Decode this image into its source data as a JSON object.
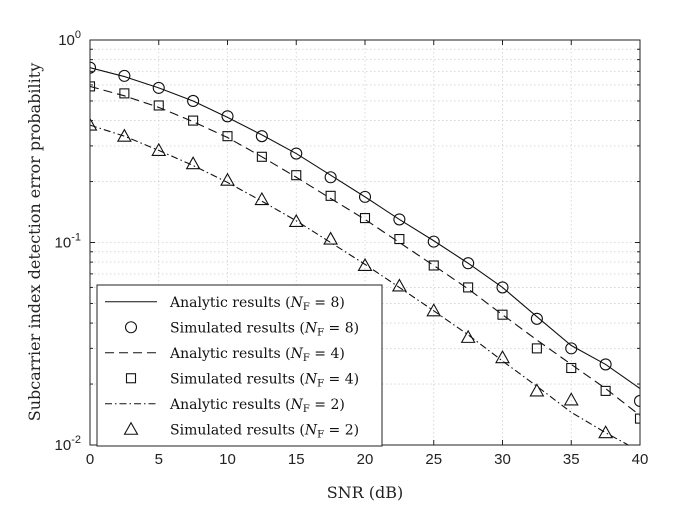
{
  "chart_data": {
    "type": "line",
    "title": "",
    "xlabel": "SNR (dB)",
    "ylabel": "Subcarrier index detection error probability",
    "xlim": [
      0,
      40
    ],
    "ylim": [
      0.01,
      1
    ],
    "yscale": "log",
    "grid": true,
    "legend_position": "bottom-left",
    "x_ticks": [
      "0",
      "5",
      "10",
      "15",
      "20",
      "25",
      "30",
      "35",
      "40"
    ],
    "y_ticks": [
      {
        "base": "10",
        "exp": "-2",
        "value": 0.01
      },
      {
        "base": "10",
        "exp": "-1",
        "value": 0.1
      },
      {
        "base": "10",
        "exp": "0",
        "value": 1
      }
    ],
    "series": [
      {
        "name": "Analytic results",
        "nf": "8",
        "style": "solid",
        "x": [
          0,
          2.5,
          5,
          7.5,
          10,
          12.5,
          15,
          17.5,
          20,
          22.5,
          25,
          27.5,
          30,
          32.5,
          35,
          37.5,
          40
        ],
        "values": [
          0.73,
          0.66,
          0.58,
          0.5,
          0.415,
          0.34,
          0.275,
          0.215,
          0.168,
          0.13,
          0.102,
          0.079,
          0.06,
          0.043,
          0.031,
          0.025,
          0.019
        ]
      },
      {
        "name": "Simulated results",
        "nf": "8",
        "marker": "circle",
        "x": [
          0,
          2.5,
          5,
          7.5,
          10,
          12.5,
          15,
          17.5,
          20,
          22.5,
          25,
          27.5,
          30,
          32.5,
          35,
          37.5,
          40
        ],
        "values": [
          0.73,
          0.665,
          0.58,
          0.5,
          0.42,
          0.335,
          0.275,
          0.21,
          0.168,
          0.13,
          0.101,
          0.079,
          0.06,
          0.042,
          0.03,
          0.025,
          0.0165
        ]
      },
      {
        "name": "Analytic results",
        "nf": "4",
        "style": "dashed",
        "x": [
          0,
          2.5,
          5,
          7.5,
          10,
          12.5,
          15,
          17.5,
          20,
          22.5,
          25,
          27.5,
          30,
          32.5,
          35,
          37.5,
          40
        ],
        "values": [
          0.59,
          0.53,
          0.465,
          0.395,
          0.33,
          0.265,
          0.21,
          0.165,
          0.13,
          0.1,
          0.077,
          0.059,
          0.044,
          0.033,
          0.025,
          0.019,
          0.014
        ]
      },
      {
        "name": "Simulated results",
        "nf": "4",
        "marker": "square",
        "x": [
          0,
          2.5,
          5,
          7.5,
          10,
          12.5,
          15,
          17.5,
          20,
          22.5,
          25,
          27.5,
          30,
          32.5,
          35,
          37.5,
          40
        ],
        "values": [
          0.59,
          0.545,
          0.475,
          0.4,
          0.335,
          0.265,
          0.215,
          0.17,
          0.132,
          0.104,
          0.077,
          0.06,
          0.044,
          0.03,
          0.024,
          0.0185,
          0.0135
        ]
      },
      {
        "name": "Analytic results",
        "nf": "2",
        "style": "dashdot",
        "x": [
          0,
          2.5,
          5,
          7.5,
          10,
          12.5,
          15,
          17.5,
          20,
          22.5,
          25,
          27.5,
          30,
          32.5,
          35,
          37.5,
          40
        ],
        "values": [
          0.38,
          0.335,
          0.285,
          0.24,
          0.198,
          0.16,
          0.128,
          0.1,
          0.078,
          0.06,
          0.046,
          0.035,
          0.026,
          0.0195,
          0.0145,
          0.0115,
          0.0093
        ]
      },
      {
        "name": "Simulated results",
        "nf": "2",
        "marker": "triangle",
        "x": [
          0,
          2.5,
          5,
          7.5,
          10,
          12.5,
          15,
          17.5,
          20,
          22.5,
          25,
          27.5,
          30,
          32.5,
          35,
          37.5
        ],
        "values": [
          0.38,
          0.335,
          0.285,
          0.245,
          0.203,
          0.163,
          0.127,
          0.104,
          0.077,
          0.061,
          0.046,
          0.034,
          0.027,
          0.0185,
          0.0167,
          0.0115
        ]
      }
    ]
  }
}
